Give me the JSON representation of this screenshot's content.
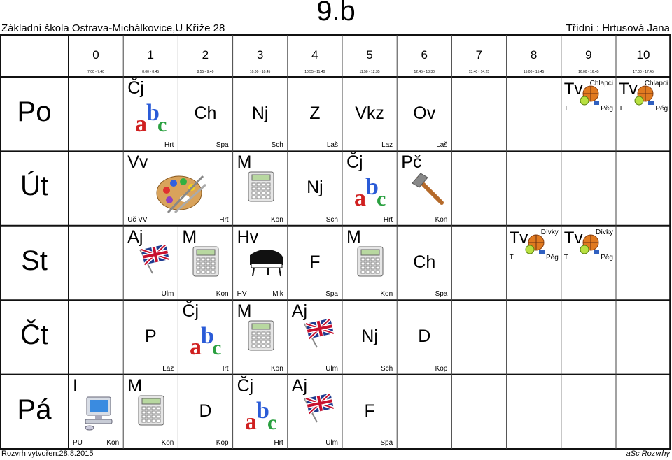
{
  "header": {
    "school": "Základní škola Ostrava-Michálkovice,U Kříže 28",
    "class_name": "9.b",
    "teacher": "Třídní : Hrtusová Jana"
  },
  "footer": {
    "created": "Rozvrh vytvořen:28.8.2015",
    "brand": "aSc Rozvrhy"
  },
  "periods": [
    {
      "num": "0",
      "time": "7:00 - 7:40"
    },
    {
      "num": "1",
      "time": "8:00 - 8:45"
    },
    {
      "num": "2",
      "time": "8:55 - 9:40"
    },
    {
      "num": "3",
      "time": "10:00 - 10:45"
    },
    {
      "num": "4",
      "time": "10:55 - 11:40"
    },
    {
      "num": "5",
      "time": "11:50 - 12:35"
    },
    {
      "num": "6",
      "time": "12:45 - 13:30"
    },
    {
      "num": "7",
      "time": "13:40 - 14:25"
    },
    {
      "num": "8",
      "time": "15:00 - 15:45"
    },
    {
      "num": "9",
      "time": "16:00 - 16:45"
    },
    {
      "num": "10",
      "time": "17:00 - 17:45"
    }
  ],
  "days": [
    {
      "label": "Po",
      "lessons": [
        {
          "p": 1,
          "subject": "Čj",
          "icon": "abc-icon",
          "teacher": "Hrt"
        },
        {
          "p": 2,
          "subject": "Ch",
          "teacher": "Spa"
        },
        {
          "p": 3,
          "subject": "Nj",
          "teacher": "Sch"
        },
        {
          "p": 4,
          "subject": "Z",
          "teacher": "Laš"
        },
        {
          "p": 5,
          "subject": "Vkz",
          "teacher": "Laz"
        },
        {
          "p": 6,
          "subject": "Ov",
          "teacher": "Laš"
        },
        {
          "p": 9,
          "subject": "Tv",
          "icon": "sport-balls-icon",
          "group": "Chlapci",
          "room": "T",
          "teacher": "Pěg"
        },
        {
          "p": 10,
          "subject": "Tv",
          "icon": "sport-balls-icon",
          "group": "Chlapci",
          "room": "T",
          "teacher": "Pěg"
        }
      ]
    },
    {
      "label": "Út",
      "lessons": [
        {
          "p": 1,
          "subject": "Vv",
          "icon": "palette-icon",
          "room": "Uč VV",
          "teacher": "Hrt",
          "span": 2
        },
        {
          "p": 3,
          "subject": "M",
          "icon": "calculator-icon",
          "teacher": "Kon"
        },
        {
          "p": 4,
          "subject": "Nj",
          "teacher": "Sch"
        },
        {
          "p": 5,
          "subject": "Čj",
          "icon": "abc-icon",
          "teacher": "Hrt"
        },
        {
          "p": 6,
          "subject": "Pč",
          "icon": "hammer-icon",
          "teacher": "Kon"
        }
      ]
    },
    {
      "label": "St",
      "lessons": [
        {
          "p": 1,
          "subject": "Aj",
          "icon": "uk-flag-icon",
          "teacher": "Ulm"
        },
        {
          "p": 2,
          "subject": "M",
          "icon": "calculator-icon",
          "teacher": "Kon"
        },
        {
          "p": 3,
          "subject": "Hv",
          "icon": "piano-icon",
          "room": "HV",
          "teacher": "Mik"
        },
        {
          "p": 4,
          "subject": "F",
          "teacher": "Spa"
        },
        {
          "p": 5,
          "subject": "M",
          "icon": "calculator-icon",
          "teacher": "Kon"
        },
        {
          "p": 6,
          "subject": "Ch",
          "teacher": "Spa"
        },
        {
          "p": 8,
          "subject": "Tv",
          "icon": "sport-balls-icon",
          "group": "Dívky",
          "room": "T",
          "teacher": "Pěg"
        },
        {
          "p": 9,
          "subject": "Tv",
          "icon": "sport-balls-icon",
          "group": "Dívky",
          "room": "T",
          "teacher": "Pěg"
        }
      ]
    },
    {
      "label": "Čt",
      "lessons": [
        {
          "p": 1,
          "subject": "P",
          "teacher": "Laz"
        },
        {
          "p": 2,
          "subject": "Čj",
          "icon": "abc-icon",
          "teacher": "Hrt"
        },
        {
          "p": 3,
          "subject": "M",
          "icon": "calculator-icon",
          "teacher": "Kon"
        },
        {
          "p": 4,
          "subject": "Aj",
          "icon": "uk-flag-icon",
          "teacher": "Ulm"
        },
        {
          "p": 5,
          "subject": "Nj",
          "teacher": "Sch"
        },
        {
          "p": 6,
          "subject": "D",
          "teacher": "Kop"
        }
      ]
    },
    {
      "label": "Pá",
      "lessons": [
        {
          "p": 0,
          "subject": "I",
          "icon": "computer-icon",
          "room": "PU",
          "teacher": "Kon"
        },
        {
          "p": 1,
          "subject": "M",
          "icon": "calculator-icon",
          "teacher": "Kon"
        },
        {
          "p": 2,
          "subject": "D",
          "teacher": "Kop"
        },
        {
          "p": 3,
          "subject": "Čj",
          "icon": "abc-icon",
          "teacher": "Hrt"
        },
        {
          "p": 4,
          "subject": "Aj",
          "icon": "uk-flag-icon",
          "teacher": "Ulm"
        },
        {
          "p": 5,
          "subject": "F",
          "teacher": "Spa"
        }
      ]
    }
  ]
}
